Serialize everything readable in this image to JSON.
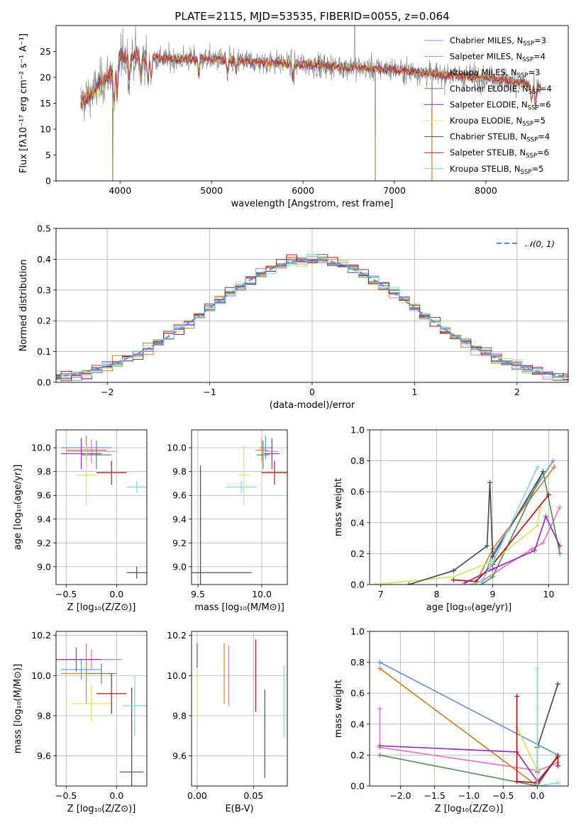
{
  "figure": {
    "title": "PLATE=2115, MJD=53535, FIBERID=0055, z=0.064"
  },
  "models": [
    {
      "name": "Chabrier MILES",
      "nssp": "3",
      "color": "#6495ed"
    },
    {
      "name": "Salpeter MILES",
      "nssp": "4",
      "color": "#e07ac0"
    },
    {
      "name": "Kroupa MILES",
      "nssp": "3",
      "color": "#d97d23"
    },
    {
      "name": "Chabrier ELODIE",
      "nssp": "4",
      "color": "#5e8c5e"
    },
    {
      "name": "Salpeter ELODIE",
      "nssp": "6",
      "color": "#9b30b0"
    },
    {
      "name": "Kroupa ELODIE",
      "nssp": "5",
      "color": "#d0e860"
    },
    {
      "name": "Chabrier STELIB",
      "nssp": "4",
      "color": "#4d4d4d"
    },
    {
      "name": "Salpeter STELIB",
      "nssp": "6",
      "color": "#b01818"
    },
    {
      "name": "Kroupa STELIB",
      "nssp": "5",
      "color": "#7ed8dc"
    }
  ],
  "chart_data": [
    {
      "id": "spectrum",
      "type": "line",
      "xlabel": "wavelength [Angstrom, rest frame]",
      "ylabel": "Flux [fλ10⁻¹⁷ erg cm⁻² s⁻¹ A⁻¹]",
      "xlim": [
        3300,
        8900
      ],
      "ylim": [
        0,
        30
      ],
      "xticks": [
        4000,
        5000,
        6000,
        7000,
        8000
      ],
      "yticks": [
        0,
        5,
        10,
        15,
        20,
        25
      ],
      "legend_position": "top-right",
      "continuum": {
        "x": [
          3560,
          3700,
          3800,
          3900,
          4000,
          4100,
          4300,
          4500,
          5000,
          5500,
          6000,
          6500,
          7000,
          7500,
          8000,
          8400,
          8600
        ],
        "y": [
          15,
          17,
          19,
          21,
          24,
          24,
          24,
          23.5,
          23.5,
          23,
          22.5,
          22,
          21.5,
          20.5,
          20,
          19,
          18
        ]
      },
      "dropouts_x": [
        3920,
        6790,
        7410
      ]
    },
    {
      "id": "residual_histogram",
      "type": "bar",
      "xlabel": "(data-model)/error",
      "ylabel": "Normed distribution",
      "xlim": [
        -2.5,
        2.5
      ],
      "ylim": [
        0,
        0.5
      ],
      "xticks": [
        -2,
        -1,
        0,
        1,
        2
      ],
      "yticks": [
        0,
        0.1,
        0.2,
        0.3,
        0.4,
        0.5
      ],
      "legend": [
        {
          "name": "𝒩(0, 1)",
          "color": "#5f8fd6",
          "style": "dashed"
        }
      ],
      "bin_width": 0.1,
      "grid": true
    },
    {
      "id": "age_vs_metallicity",
      "type": "scatter",
      "xlabel": "Z [log₁₀(Z/Z⊙)]",
      "ylabel": "age  [log₁₀(age/yr)]",
      "xlim": [
        -0.6,
        0.3
      ],
      "ylim": [
        8.85,
        10.15
      ],
      "xticks": [
        -0.5,
        0.0
      ],
      "yticks": [
        9.0,
        9.2,
        9.4,
        9.6,
        9.8,
        10.0
      ],
      "points": [
        {
          "model": 0,
          "x": -0.3,
          "xerr": 0.25,
          "y": 10.0,
          "yerr": 0.1
        },
        {
          "model": 1,
          "x": -0.25,
          "xerr": 0.25,
          "y": 9.97,
          "yerr": 0.1
        },
        {
          "model": 2,
          "x": -0.3,
          "xerr": 0.2,
          "y": 9.98,
          "yerr": 0.1
        },
        {
          "model": 3,
          "x": -0.2,
          "xerr": 0.15,
          "y": 9.94,
          "yerr": 0.12
        },
        {
          "model": 4,
          "x": -0.35,
          "xerr": 0.2,
          "y": 9.95,
          "yerr": 0.13
        },
        {
          "model": 5,
          "x": -0.3,
          "xerr": 0.1,
          "y": 9.77,
          "yerr": 0.25
        },
        {
          "model": 6,
          "x": 0.2,
          "xerr": 0.1,
          "y": 8.95,
          "yerr": 0.05
        },
        {
          "model": 7,
          "x": -0.05,
          "xerr": 0.15,
          "y": 9.79,
          "yerr": 0.1
        },
        {
          "model": 8,
          "x": 0.2,
          "xerr": 0.1,
          "y": 9.67,
          "yerr": 0.05
        }
      ],
      "grid": true
    },
    {
      "id": "age_vs_mass",
      "type": "scatter",
      "xlabel": "mass [log₁₀(M/M⊙)]",
      "ylabel": "",
      "xlim": [
        9.45,
        10.2
      ],
      "ylim": [
        8.85,
        10.15
      ],
      "xticks": [
        9.5,
        10.0
      ],
      "yticks": [
        9.0,
        9.2,
        9.4,
        9.6,
        9.8,
        10.0
      ],
      "points": [
        {
          "model": 0,
          "x": 10.03,
          "xerr": 0.05,
          "y": 10.0,
          "yerr": 0.1
        },
        {
          "model": 1,
          "x": 10.08,
          "xerr": 0.05,
          "y": 9.97,
          "yerr": 0.1
        },
        {
          "model": 2,
          "x": 10.0,
          "xerr": 0.05,
          "y": 9.98,
          "yerr": 0.1
        },
        {
          "model": 3,
          "x": 10.01,
          "xerr": 0.05,
          "y": 9.94,
          "yerr": 0.12
        },
        {
          "model": 4,
          "x": 10.08,
          "xerr": 0.06,
          "y": 9.95,
          "yerr": 0.13
        },
        {
          "model": 5,
          "x": 9.86,
          "xerr": 0.05,
          "y": 9.77,
          "yerr": 0.25
        },
        {
          "model": 6,
          "x": 9.52,
          "xerr": 0.4,
          "y": 8.95,
          "yerr": 0.9
        },
        {
          "model": 7,
          "x": 10.1,
          "xerr": 0.1,
          "y": 9.79,
          "yerr": 0.1
        },
        {
          "model": 8,
          "x": 9.84,
          "xerr": 0.12,
          "y": 9.67,
          "yerr": 0.05
        }
      ],
      "grid": true
    },
    {
      "id": "mass_weight_vs_age",
      "type": "line",
      "xlabel": "age  [log₁₀(age/yr)]",
      "ylabel": "mass weight",
      "xlim": [
        6.8,
        10.35
      ],
      "ylim": [
        0,
        1.0
      ],
      "xticks": [
        7,
        8,
        9,
        10
      ],
      "yticks": [
        0.0,
        0.2,
        0.4,
        0.6,
        0.8,
        1.0
      ],
      "series": [
        {
          "model": 0,
          "x": [
            8.8,
            9.0,
            10.08
          ],
          "y": [
            0.0,
            0.2,
            0.8
          ]
        },
        {
          "model": 1,
          "x": [
            8.8,
            9.7,
            9.9,
            10.2
          ],
          "y": [
            0.02,
            0.23,
            0.27,
            0.5
          ]
        },
        {
          "model": 2,
          "x": [
            8.7,
            9.0,
            10.1
          ],
          "y": [
            0.01,
            0.23,
            0.76
          ]
        },
        {
          "model": 3,
          "x": [
            8.8,
            9.0,
            9.9,
            10.2
          ],
          "y": [
            0.0,
            0.05,
            0.73,
            0.2
          ]
        },
        {
          "model": 4,
          "x": [
            8.5,
            9.0,
            9.75,
            9.95,
            10.2
          ],
          "y": [
            0.01,
            0.1,
            0.22,
            0.44,
            0.25
          ]
        },
        {
          "model": 5,
          "x": [
            6.9,
            8.3,
            9.0,
            9.8,
            9.85
          ],
          "y": [
            0.0,
            0.05,
            0.15,
            0.38,
            0.5
          ]
        },
        {
          "model": 6,
          "x": [
            7.5,
            8.3,
            8.9,
            8.95,
            9.0,
            9.9
          ],
          "y": [
            0.0,
            0.09,
            0.25,
            0.66,
            0.18,
            0.73
          ]
        },
        {
          "model": 7,
          "x": [
            8.3,
            8.7,
            9.0,
            10.0
          ],
          "y": [
            0.03,
            0.02,
            0.13,
            0.58
          ]
        },
        {
          "model": 8,
          "x": [
            8.6,
            8.8,
            9.0,
            9.8
          ],
          "y": [
            0.0,
            0.02,
            0.14,
            0.76
          ]
        }
      ],
      "grid": true
    },
    {
      "id": "mass_vs_metallicity",
      "type": "scatter",
      "xlabel": "Z [log₁₀(Z/Z⊙)]",
      "ylabel": "mass [log₁₀(M/M⊙)]",
      "xlim": [
        -0.6,
        0.3
      ],
      "ylim": [
        9.45,
        10.22
      ],
      "xticks": [
        -0.5,
        0.0
      ],
      "yticks": [
        9.6,
        9.8,
        10.0,
        10.2
      ],
      "points": [
        {
          "model": 0,
          "x": -0.35,
          "xerr": 0.2,
          "y": 10.03,
          "yerr": 0.05
        },
        {
          "model": 1,
          "x": -0.25,
          "xerr": 0.3,
          "y": 10.08,
          "yerr": 0.05
        },
        {
          "model": 2,
          "x": -0.3,
          "xerr": 0.25,
          "y": 10.01,
          "yerr": 0.15
        },
        {
          "model": 3,
          "x": -0.15,
          "xerr": 0.15,
          "y": 10.01,
          "yerr": 0.05
        },
        {
          "model": 4,
          "x": -0.4,
          "xerr": 0.25,
          "y": 10.08,
          "yerr": 0.06
        },
        {
          "model": 5,
          "x": -0.25,
          "xerr": 0.2,
          "y": 9.86,
          "yerr": 0.09
        },
        {
          "model": 6,
          "x": 0.15,
          "xerr": 0.12,
          "y": 9.52,
          "yerr": 0.42
        },
        {
          "model": 7,
          "x": -0.05,
          "xerr": 0.15,
          "y": 9.91,
          "yerr": 0.1
        },
        {
          "model": 8,
          "x": 0.18,
          "xerr": 0.12,
          "y": 9.85,
          "yerr": 0.15
        }
      ],
      "grid": true
    },
    {
      "id": "mass_vs_ebv",
      "type": "scatter",
      "xlabel": "E(B-V)",
      "ylabel": "",
      "xlim": [
        -0.005,
        0.08
      ],
      "ylim": [
        9.45,
        10.22
      ],
      "xticks": [
        0.0,
        0.05
      ],
      "yticks": [
        9.6,
        9.8,
        10.0,
        10.2
      ],
      "points": [
        {
          "model": 5,
          "x": 0.0,
          "y": 9.9,
          "yerr": 0.14
        },
        {
          "model": 4,
          "x": 0.0,
          "y": 10.1,
          "yerr": 0.06
        },
        {
          "model": 2,
          "x": 0.024,
          "y": 10.01,
          "yerr": 0.15
        },
        {
          "model": 1,
          "x": 0.028,
          "y": 10.0,
          "yerr": 0.15
        },
        {
          "model": 7,
          "x": 0.052,
          "y": 10.0,
          "yerr": 0.18
        },
        {
          "model": 6,
          "x": 0.06,
          "y": 9.71,
          "yerr": 0.22
        },
        {
          "model": 8,
          "x": 0.077,
          "y": 9.87,
          "yerr": 0.18
        }
      ],
      "grid": true
    },
    {
      "id": "mass_weight_vs_metallicity",
      "type": "line",
      "xlabel": "Z [log₁₀(Z/Z⊙)]",
      "ylabel": "mass weight",
      "xlim": [
        -2.45,
        0.45
      ],
      "ylim": [
        0,
        1.0
      ],
      "xticks": [
        -2.0,
        -1.5,
        -1.0,
        -0.5,
        0.0
      ],
      "yticks": [
        0.0,
        0.2,
        0.4,
        0.6,
        0.8,
        1.0
      ],
      "series": [
        {
          "model": 0,
          "x": [
            -2.3,
            0.3
          ],
          "y": [
            0.8,
            0.2
          ]
        },
        {
          "model": 1,
          "x": [
            -2.3,
            -2.3,
            0.0,
            0.3,
            0.3
          ],
          "y": [
            0.5,
            0.25,
            0.1,
            0.15,
            0.2
          ]
        },
        {
          "model": 2,
          "x": [
            -2.3,
            0.0,
            0.3
          ],
          "y": [
            0.76,
            0.0,
            0.2
          ]
        },
        {
          "model": 3,
          "x": [
            -2.3,
            0.0,
            0.3
          ],
          "y": [
            0.2,
            0.0,
            0.2
          ]
        },
        {
          "model": 4,
          "x": [
            -2.3,
            -0.3,
            0.0,
            0.3
          ],
          "y": [
            0.26,
            0.22,
            0.03,
            0.19
          ]
        },
        {
          "model": 5,
          "x": [
            -0.3,
            0.0,
            0.0
          ],
          "y": [
            0.38,
            0.1,
            0.5
          ]
        },
        {
          "model": 6,
          "x": [
            0.0,
            0.0,
            0.3
          ],
          "y": [
            0.09,
            0.25,
            0.66
          ]
        },
        {
          "model": 7,
          "x": [
            -0.3,
            -0.3,
            0.0,
            0.3,
            0.3
          ],
          "y": [
            0.58,
            0.03,
            0.02,
            0.19,
            0.13
          ]
        },
        {
          "model": 8,
          "x": [
            0.0,
            0.0,
            0.3
          ],
          "y": [
            0.76,
            0.0,
            0.02
          ]
        }
      ],
      "grid": true
    }
  ]
}
